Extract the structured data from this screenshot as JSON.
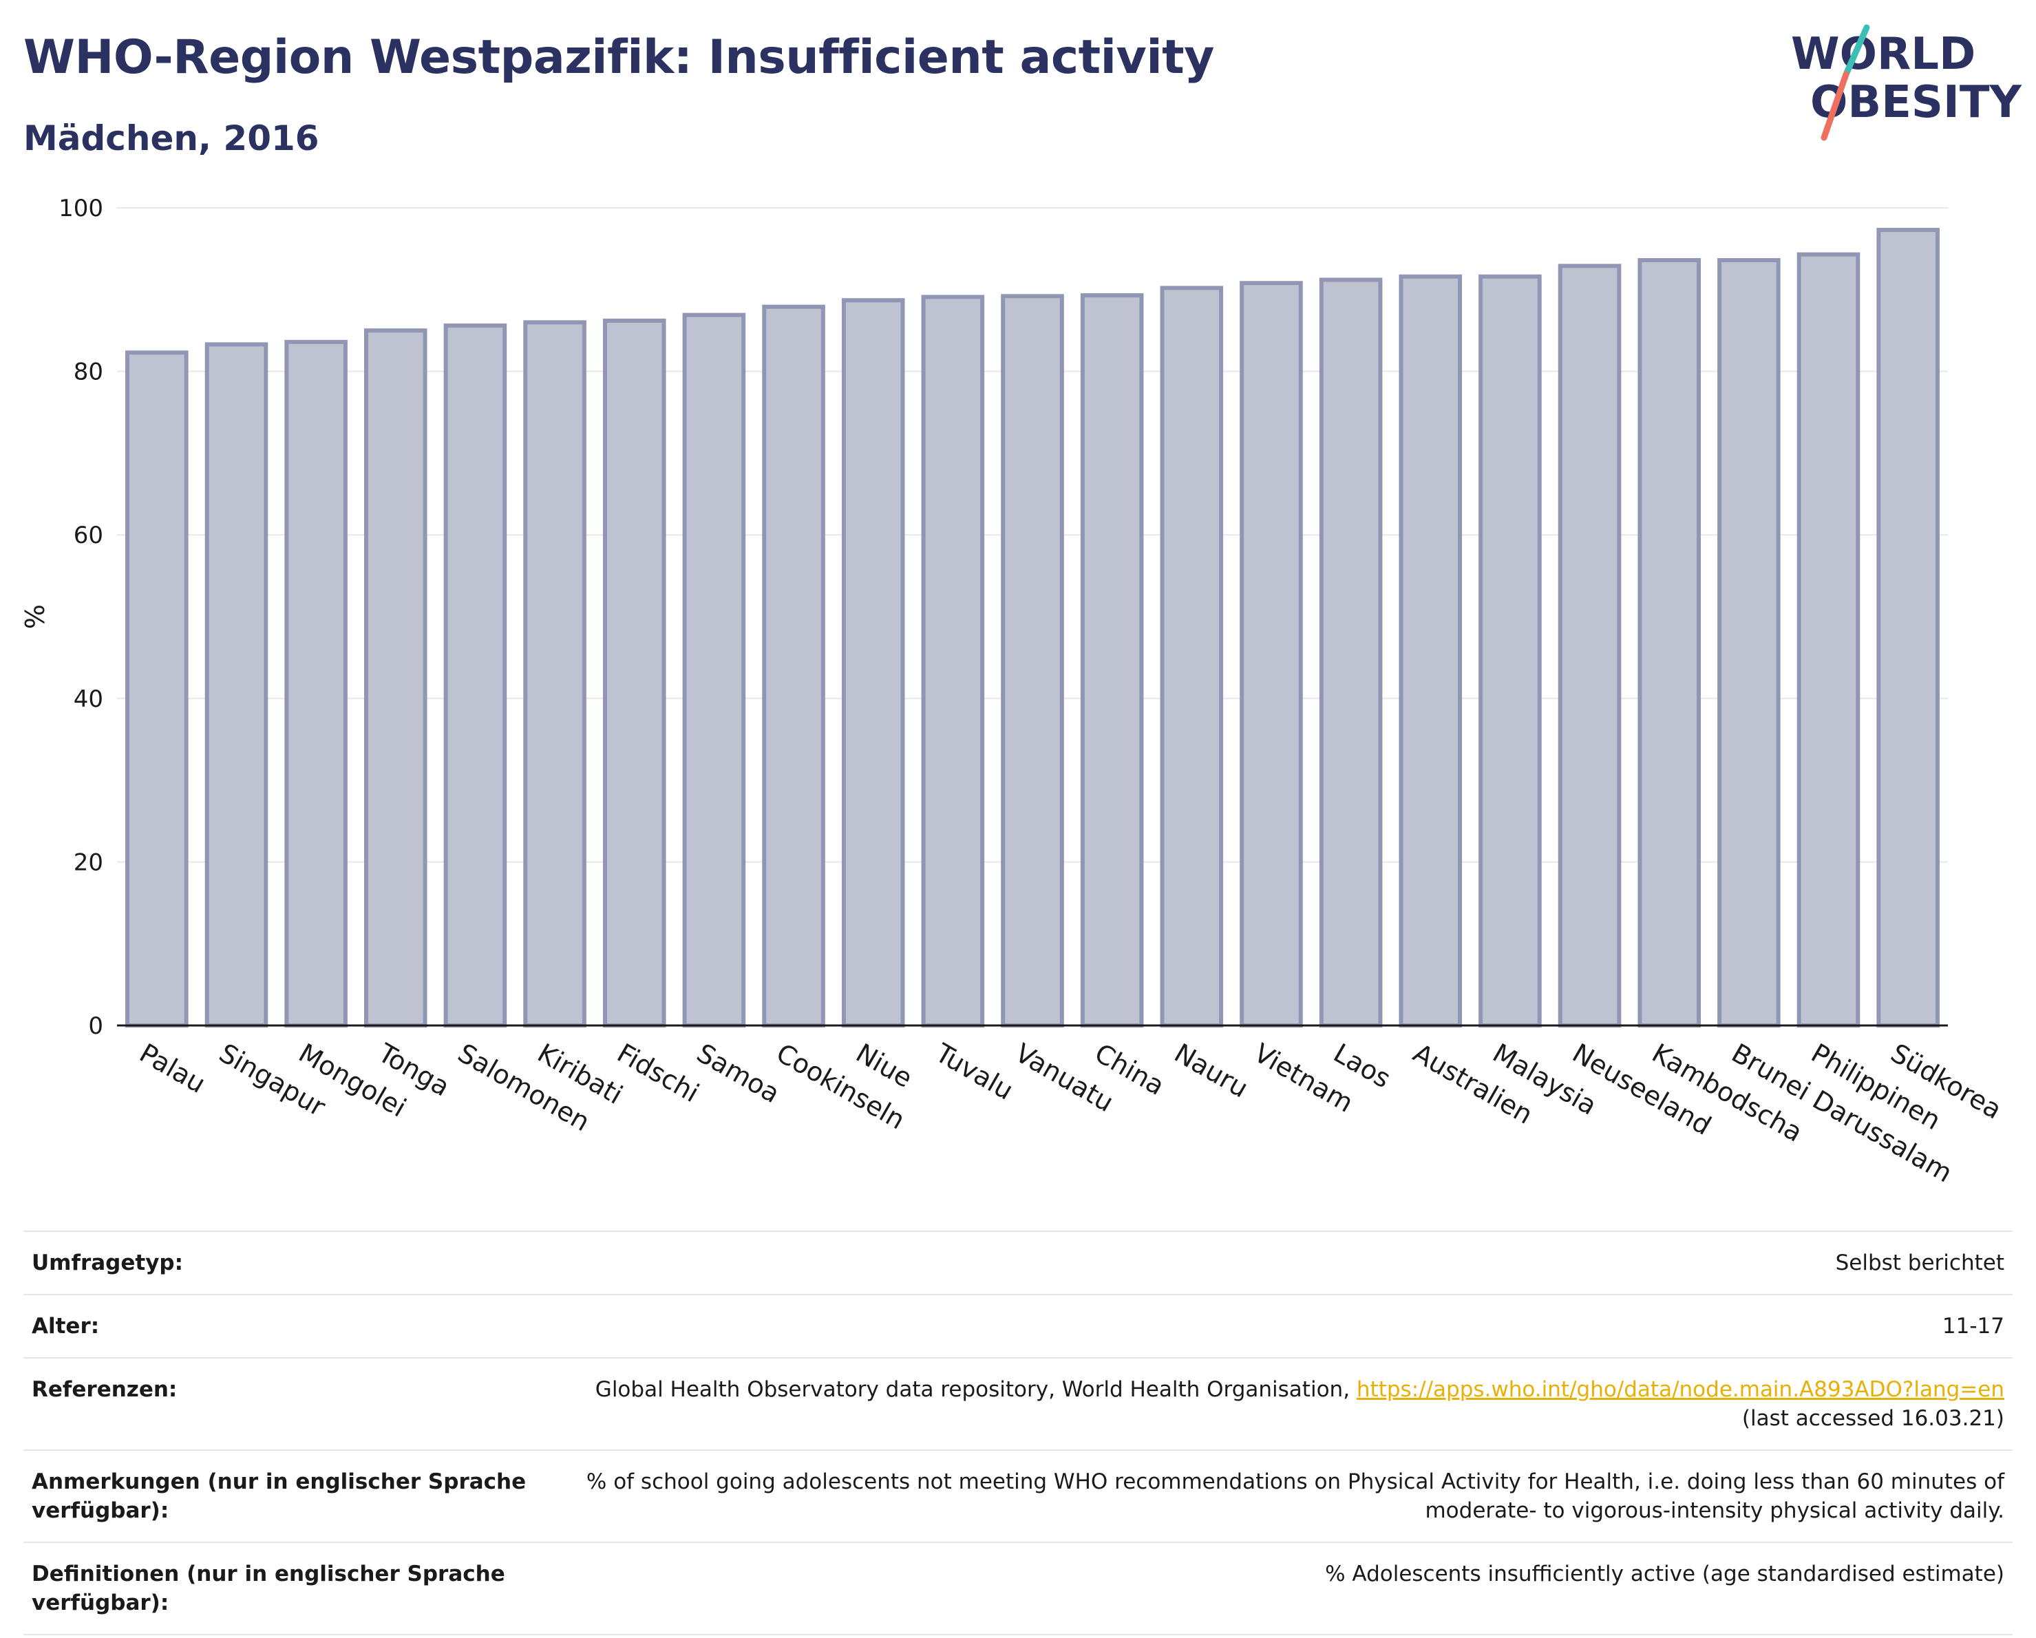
{
  "header": {
    "title": "WHO-Region Westpazifik: Insufficient activity",
    "subtitle": "Mädchen, 2016",
    "logo_line1": "WORLD",
    "logo_line2": "OBESITY"
  },
  "colors": {
    "bar_fill": "#bfc3d1",
    "bar_stroke": "#9096b3",
    "title": "#2b3160",
    "link": "#e8b007",
    "logo_teal": "#3cbdb5",
    "logo_coral": "#ee6e5f"
  },
  "chart_data": {
    "type": "bar",
    "title": "",
    "xlabel": "",
    "ylabel": "%",
    "ylim": [
      0,
      100
    ],
    "yticks": [
      0,
      20,
      40,
      60,
      80,
      100
    ],
    "grid": true,
    "categories": [
      "Palau",
      "Singapur",
      "Mongolei",
      "Tonga",
      "Salomonen",
      "Kiribati",
      "Fidschi",
      "Samoa",
      "Cookinseln",
      "Niue",
      "Tuvalu",
      "Vanuatu",
      "China",
      "Nauru",
      "Vietnam",
      "Laos",
      "Australien",
      "Malaysia",
      "Neuseeland",
      "Kambodscha",
      "Brunei Darussalam",
      "Philippinen",
      "Südkorea"
    ],
    "values": [
      82.3,
      83.3,
      83.6,
      85.0,
      85.6,
      86.0,
      86.2,
      86.9,
      87.9,
      88.7,
      89.1,
      89.2,
      89.3,
      90.2,
      90.8,
      91.2,
      91.6,
      91.6,
      92.9,
      93.6,
      93.6,
      94.3,
      97.3
    ]
  },
  "info": [
    {
      "key": "Umfragetyp:",
      "value": "Selbst berichtet"
    },
    {
      "key": "Alter:",
      "value": "11-17"
    },
    {
      "key": "Referenzen:",
      "value": "Global Health Observatory data repository, World Health Organisation, ",
      "link": "https://apps.who.int/gho/data/node.main.A893ADO?lang=en",
      "value2": "(last accessed 16.03.21)"
    },
    {
      "key": "Anmerkungen (nur in englischer Sprache verfügbar):",
      "value": "% of school going adolescents not meeting WHO recommendations on Physical Activity for Health, i.e. doing less than 60 minutes of moderate- to vigorous-intensity physical activity daily."
    },
    {
      "key": "Definitionen (nur in englischer Sprache verfügbar):",
      "value": "% Adolescents insufficiently active (age standardised estimate)"
    }
  ]
}
